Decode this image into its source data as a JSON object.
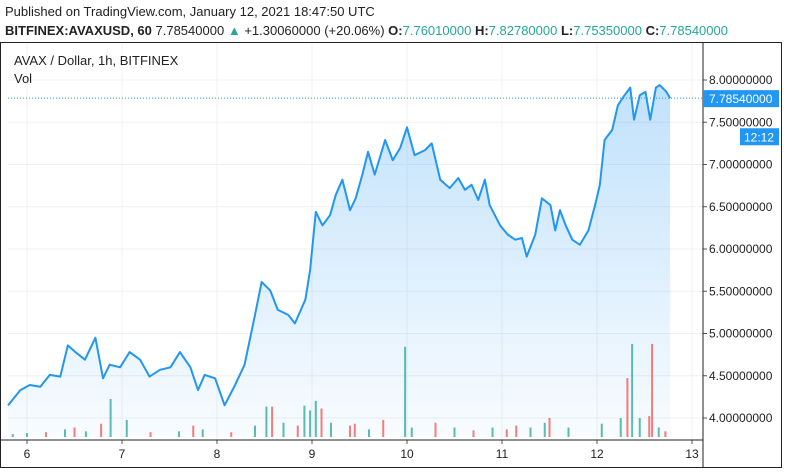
{
  "header": {
    "published": "Published on TradingView.com, January 12, 2021 18:47:50 UTC",
    "symbol": "BITFINEX:AVAXUSD, 60",
    "last": "7.78540000",
    "change": "+1.30060000 (+20.06%)",
    "o_label": "O:",
    "o": "7.76010000",
    "h_label": "H:",
    "h": "7.82780000",
    "l_label": "L:",
    "l": "7.75350000",
    "c_label": "C:",
    "c": "7.78540000"
  },
  "legend": {
    "title": "AVAX / Dollar, 1h, BITFINEX",
    "vol": "Vol"
  },
  "colors": {
    "line": "#2196f3",
    "up": "#26a69a",
    "down": "#ef5350"
  },
  "chart_data": {
    "type": "area",
    "ylim": [
      3.75,
      8.35
    ],
    "xlim": [
      5.8,
      13.1
    ],
    "yticks": [
      "8.00000000",
      "7.50000000",
      "7.00000000",
      "6.50000000",
      "6.00000000",
      "5.50000000",
      "5.00000000",
      "4.50000000",
      "4.00000000"
    ],
    "ytick_values": [
      8,
      7.5,
      7,
      6.5,
      6,
      5.5,
      5,
      4.5,
      4
    ],
    "xticks": [
      "6",
      "7",
      "8",
      "9",
      "10",
      "11",
      "12",
      "13"
    ],
    "xtick_values": [
      6,
      7,
      8,
      9,
      10,
      11,
      12,
      13
    ],
    "last_price_label": "7.78540000",
    "countdown": "12:12",
    "last_price": 7.7854,
    "points": [
      [
        5.8,
        4.15
      ],
      [
        5.93,
        4.33
      ],
      [
        6.03,
        4.39
      ],
      [
        6.14,
        4.37
      ],
      [
        6.24,
        4.51
      ],
      [
        6.35,
        4.49
      ],
      [
        6.43,
        4.86
      ],
      [
        6.51,
        4.78
      ],
      [
        6.61,
        4.69
      ],
      [
        6.72,
        4.95
      ],
      [
        6.8,
        4.47
      ],
      [
        6.87,
        4.63
      ],
      [
        6.98,
        4.6
      ],
      [
        7.08,
        4.78
      ],
      [
        7.19,
        4.69
      ],
      [
        7.29,
        4.49
      ],
      [
        7.4,
        4.57
      ],
      [
        7.51,
        4.6
      ],
      [
        7.61,
        4.78
      ],
      [
        7.72,
        4.6
      ],
      [
        7.8,
        4.33
      ],
      [
        7.87,
        4.51
      ],
      [
        7.98,
        4.47
      ],
      [
        8.08,
        4.15
      ],
      [
        8.19,
        4.39
      ],
      [
        8.29,
        4.63
      ],
      [
        8.4,
        5.22
      ],
      [
        8.47,
        5.61
      ],
      [
        8.56,
        5.51
      ],
      [
        8.64,
        5.28
      ],
      [
        8.75,
        5.22
      ],
      [
        8.82,
        5.12
      ],
      [
        8.93,
        5.4
      ],
      [
        8.98,
        5.75
      ],
      [
        9.04,
        6.44
      ],
      [
        9.11,
        6.28
      ],
      [
        9.19,
        6.4
      ],
      [
        9.25,
        6.64
      ],
      [
        9.32,
        6.82
      ],
      [
        9.4,
        6.46
      ],
      [
        9.46,
        6.6
      ],
      [
        9.53,
        6.88
      ],
      [
        9.59,
        7.15
      ],
      [
        9.66,
        6.88
      ],
      [
        9.77,
        7.29
      ],
      [
        9.85,
        7.05
      ],
      [
        9.93,
        7.2
      ],
      [
        10.0,
        7.44
      ],
      [
        10.08,
        7.11
      ],
      [
        10.19,
        7.17
      ],
      [
        10.26,
        7.25
      ],
      [
        10.35,
        6.82
      ],
      [
        10.45,
        6.72
      ],
      [
        10.54,
        6.84
      ],
      [
        10.61,
        6.7
      ],
      [
        10.68,
        6.76
      ],
      [
        10.75,
        6.58
      ],
      [
        10.82,
        6.82
      ],
      [
        10.87,
        6.52
      ],
      [
        10.98,
        6.28
      ],
      [
        11.06,
        6.17
      ],
      [
        11.14,
        6.11
      ],
      [
        11.21,
        6.13
      ],
      [
        11.26,
        5.91
      ],
      [
        11.35,
        6.17
      ],
      [
        11.42,
        6.6
      ],
      [
        11.51,
        6.52
      ],
      [
        11.56,
        6.22
      ],
      [
        11.61,
        6.46
      ],
      [
        11.67,
        6.28
      ],
      [
        11.74,
        6.11
      ],
      [
        11.82,
        6.05
      ],
      [
        11.91,
        6.22
      ],
      [
        11.98,
        6.52
      ],
      [
        12.03,
        6.76
      ],
      [
        12.08,
        7.29
      ],
      [
        12.16,
        7.41
      ],
      [
        12.22,
        7.7
      ],
      [
        12.29,
        7.82
      ],
      [
        12.35,
        7.91
      ],
      [
        12.39,
        7.53
      ],
      [
        12.45,
        7.82
      ],
      [
        12.51,
        7.86
      ],
      [
        12.56,
        7.53
      ],
      [
        12.62,
        7.91
      ],
      [
        12.66,
        7.94
      ],
      [
        12.73,
        7.86
      ],
      [
        12.77,
        7.785
      ]
    ],
    "volume_relative": [
      [
        5.85,
        0.03,
        "up"
      ],
      [
        6.0,
        0.04,
        "up"
      ],
      [
        6.2,
        0.05,
        "down"
      ],
      [
        6.4,
        0.08,
        "up"
      ],
      [
        6.5,
        0.1,
        "down"
      ],
      [
        6.62,
        0.06,
        "up"
      ],
      [
        6.78,
        0.14,
        "down"
      ],
      [
        6.88,
        0.4,
        "up"
      ],
      [
        7.05,
        0.18,
        "up"
      ],
      [
        7.3,
        0.05,
        "down"
      ],
      [
        7.6,
        0.06,
        "up"
      ],
      [
        7.75,
        0.12,
        "down"
      ],
      [
        7.85,
        0.08,
        "up"
      ],
      [
        8.15,
        0.05,
        "down"
      ],
      [
        8.4,
        0.12,
        "up"
      ],
      [
        8.52,
        0.32,
        "up"
      ],
      [
        8.58,
        0.32,
        "down"
      ],
      [
        8.7,
        0.15,
        "up"
      ],
      [
        8.85,
        0.12,
        "down"
      ],
      [
        8.92,
        0.33,
        "up"
      ],
      [
        8.98,
        0.28,
        "up"
      ],
      [
        9.04,
        0.38,
        "up"
      ],
      [
        9.1,
        0.3,
        "down"
      ],
      [
        9.2,
        0.15,
        "up"
      ],
      [
        9.4,
        0.12,
        "down"
      ],
      [
        9.45,
        0.14,
        "down"
      ],
      [
        9.6,
        0.08,
        "up"
      ],
      [
        9.75,
        0.18,
        "down"
      ],
      [
        9.98,
        0.95,
        "up"
      ],
      [
        10.05,
        0.1,
        "up"
      ],
      [
        10.3,
        0.15,
        "down"
      ],
      [
        10.5,
        0.1,
        "up"
      ],
      [
        10.7,
        0.07,
        "down"
      ],
      [
        10.9,
        0.1,
        "up"
      ],
      [
        11.05,
        0.08,
        "down"
      ],
      [
        11.15,
        0.12,
        "down"
      ],
      [
        11.3,
        0.1,
        "up"
      ],
      [
        11.45,
        0.15,
        "up"
      ],
      [
        11.5,
        0.2,
        "down"
      ],
      [
        11.7,
        0.1,
        "up"
      ],
      [
        12.05,
        0.14,
        "up"
      ],
      [
        12.25,
        0.2,
        "up"
      ],
      [
        12.32,
        0.62,
        "down"
      ],
      [
        12.37,
        0.98,
        "up"
      ],
      [
        12.45,
        0.2,
        "up"
      ],
      [
        12.55,
        0.22,
        "down"
      ],
      [
        12.58,
        0.98,
        "down"
      ],
      [
        12.65,
        0.1,
        "up"
      ],
      [
        12.72,
        0.06,
        "down"
      ]
    ]
  }
}
